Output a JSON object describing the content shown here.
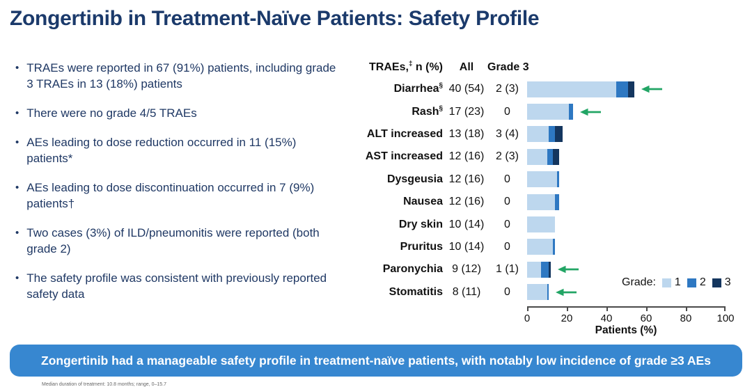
{
  "title": "Zongertinib in Treatment-Naïve Patients: Safety Profile",
  "bullets": [
    "TRAEs were reported in 67 (91%) patients, including grade 3 TRAEs in 13 (18%) patients",
    "There were no grade 4/5 TRAEs",
    "AEs leading to dose reduction occurred in 11 (15%) patients*",
    "AEs leading to dose discontinuation occurred in 7 (9%) patients†",
    "Two cases (3%) of ILD/pneumonitis were reported (both grade 2)",
    "The safety profile was consistent with previously reported safety data"
  ],
  "table": {
    "header": {
      "traes_prefix": "TRAEs,",
      "traes_sup": "‡",
      "traes_suffix": " n (%)",
      "all": "All",
      "grade3": "Grade 3"
    },
    "rows": [
      {
        "label": "Diarrhea",
        "sup": "§",
        "all": "40 (54)",
        "grade3": "2 (3)"
      },
      {
        "label": "Rash",
        "sup": "§",
        "all": "17 (23)",
        "grade3": "0"
      },
      {
        "label": "ALT increased",
        "sup": "",
        "all": "13 (18)",
        "grade3": "3 (4)"
      },
      {
        "label": "AST increased",
        "sup": "",
        "all": "12 (16)",
        "grade3": "2 (3)"
      },
      {
        "label": "Dysgeusia",
        "sup": "",
        "all": "12 (16)",
        "grade3": "0"
      },
      {
        "label": "Nausea",
        "sup": "",
        "all": "12 (16)",
        "grade3": "0"
      },
      {
        "label": "Dry skin",
        "sup": "",
        "all": "10 (14)",
        "grade3": "0"
      },
      {
        "label": "Pruritus",
        "sup": "",
        "all": "10 (14)",
        "grade3": "0"
      },
      {
        "label": "Paronychia",
        "sup": "",
        "all": "9 (12)",
        "grade3": "1 (1)"
      },
      {
        "label": "Stomatitis",
        "sup": "",
        "all": "8 (11)",
        "grade3": "0"
      }
    ]
  },
  "chart_data": {
    "type": "bar",
    "orientation": "horizontal-stacked",
    "categories": [
      "Diarrhea",
      "Rash",
      "ALT increased",
      "AST increased",
      "Dysgeusia",
      "Nausea",
      "Dry skin",
      "Pruritus",
      "Paronychia",
      "Stomatitis"
    ],
    "series": [
      {
        "name": "Grade 1",
        "values": [
          45,
          21,
          11,
          10,
          15,
          14,
          14,
          13,
          7,
          10
        ]
      },
      {
        "name": "Grade 2",
        "values": [
          6,
          2,
          3,
          3,
          1,
          2,
          0,
          1,
          4,
          1
        ]
      },
      {
        "name": "Grade 3",
        "values": [
          3,
          0,
          4,
          3,
          0,
          0,
          0,
          0,
          1,
          0
        ]
      }
    ],
    "totals_pct": [
      54,
      23,
      18,
      16,
      16,
      16,
      14,
      14,
      12,
      11
    ],
    "xlabel": "Patients (%)",
    "xlim": [
      0,
      100
    ],
    "xticks": [
      0,
      20,
      40,
      60,
      80,
      100
    ],
    "grid": false,
    "legend": {
      "label": "Grade:",
      "entries": [
        "1",
        "2",
        "3"
      ],
      "position": "bottom-right"
    },
    "arrow_annotated_categories": [
      "Diarrhea",
      "Rash",
      "Paronychia",
      "Stomatitis"
    ]
  },
  "banner": "Zongertinib had a manageable safety profile in treatment-naïve patients, with notably low incidence of grade ≥3 AEs",
  "footnote": "Median duration of treatment: 10.8 months; range, 0–15.7",
  "colors": {
    "title_text": "#1b3a6b",
    "bullet_text": "#1f3864",
    "grade1": "#bdd7ee",
    "grade2": "#2e78c2",
    "grade3": "#14365f",
    "arrow_green": "#22a565",
    "banner_bg": "#3787d0",
    "banner_text": "#ffffff",
    "axis": "#4a4a4a"
  }
}
